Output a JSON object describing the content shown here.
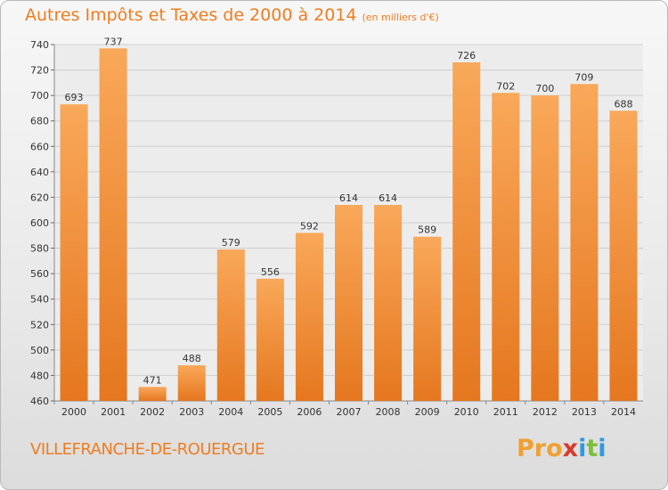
{
  "title": "Autres Impôts et Taxes de 2000 à 2014",
  "subtitle": "(en milliers d'€)",
  "location": "VILLEFRANCHE-DE-ROUERGUE",
  "logo": "Proxiti",
  "colors": {
    "bar_light": "#f9a85a",
    "bar_dark": "#e5771f",
    "title": "#ef7d1f",
    "grid": "#cfcfcf"
  },
  "chart_data": {
    "type": "bar",
    "categories": [
      "2000",
      "2001",
      "2002",
      "2003",
      "2004",
      "2005",
      "2006",
      "2007",
      "2008",
      "2009",
      "2010",
      "2011",
      "2012",
      "2013",
      "2014"
    ],
    "values": [
      693,
      737,
      471,
      488,
      579,
      556,
      592,
      614,
      614,
      589,
      726,
      702,
      700,
      709,
      688
    ],
    "ylim": [
      460,
      740
    ],
    "yticks": [
      460,
      480,
      500,
      520,
      540,
      560,
      580,
      600,
      620,
      640,
      660,
      680,
      700,
      720,
      740
    ],
    "grid": true
  }
}
